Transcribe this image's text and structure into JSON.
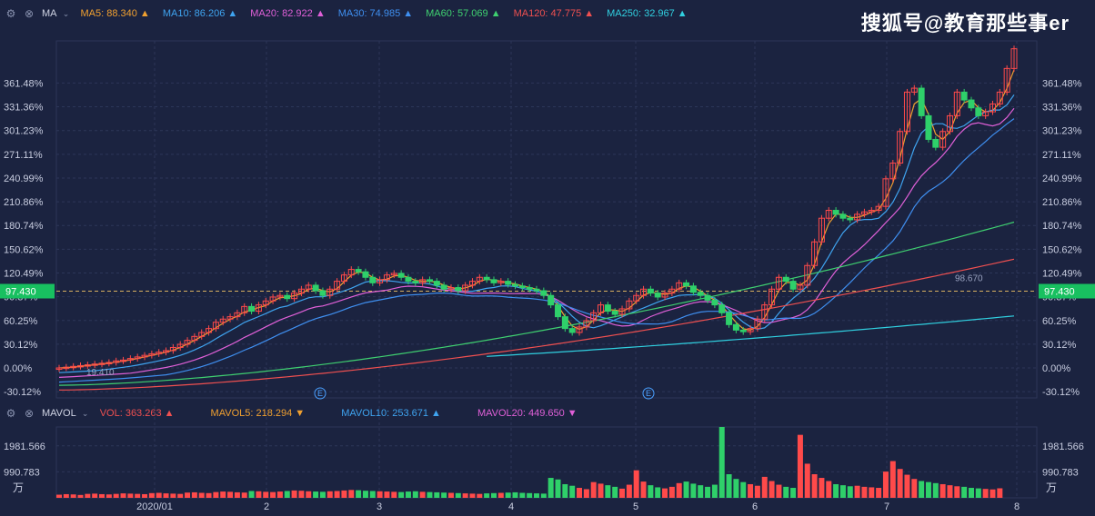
{
  "watermark": "搜狐号@教育那些事er",
  "price_indicator": {
    "name": "MA",
    "legends": [
      {
        "label": "MA5: 88.340",
        "color": "#f0a030"
      },
      {
        "label": "MA10: 86.206",
        "color": "#3fa4f0"
      },
      {
        "label": "MA20: 82.922",
        "color": "#e060d8"
      },
      {
        "label": "MA30: 74.985",
        "color": "#3f8ff0"
      },
      {
        "label": "MA60: 57.069",
        "color": "#3fd070"
      },
      {
        "label": "MA120: 47.775",
        "color": "#f05050"
      },
      {
        "label": "MA250: 32.967",
        "color": "#30d0e0"
      }
    ],
    "arrow": "▲"
  },
  "volume_indicator": {
    "name": "MAVOL",
    "legends": [
      {
        "label": "VOL: 363.263",
        "color": "#f05050",
        "arrow": "▲"
      },
      {
        "label": "MAVOL5: 218.294",
        "color": "#f0a030",
        "arrow": "▼"
      },
      {
        "label": "MAVOL10: 253.671",
        "color": "#3fa4f0",
        "arrow": "▲"
      },
      {
        "label": "MAVOL20: 449.650",
        "color": "#e060d8",
        "arrow": "▼"
      }
    ]
  },
  "colors": {
    "up": "#ff4a4a",
    "down": "#2fd06a",
    "grid": "#2c3658",
    "axis_text": "#c8cde0",
    "current": "#18c060"
  },
  "chart_data": [
    {
      "type": "candlestick",
      "title": "MA",
      "y_axis_unit": "percent",
      "ylim": [
        -38,
        415
      ],
      "y_ticks": [
        -30.12,
        0.0,
        30.12,
        60.25,
        90.37,
        120.49,
        150.62,
        180.74,
        210.86,
        240.99,
        271.11,
        301.23,
        331.36,
        361.48
      ],
      "y_tick_labels": [
        "-30.12%",
        "0.00%",
        "30.12%",
        "60.25%",
        "90.37%",
        "120.49%",
        "150.62%",
        "180.74%",
        "210.86%",
        "240.99%",
        "271.11%",
        "301.23%",
        "331.36%",
        "361.48%"
      ],
      "current_value": 97.43,
      "current_label": "97.430",
      "annotations": {
        "high_label": "98.670",
        "low_label": "19.410",
        "event_markers": [
          "E",
          "E"
        ]
      },
      "x_labels": [
        "2020/01",
        "2",
        "3",
        "4",
        "5",
        "6",
        "7",
        "8"
      ],
      "series": [
        {
          "name": "MA5",
          "color": "#f0a030"
        },
        {
          "name": "MA10",
          "color": "#3fa4f0"
        },
        {
          "name": "MA20",
          "color": "#e060d8"
        },
        {
          "name": "MA30",
          "color": "#3f8ff0"
        },
        {
          "name": "MA60",
          "color": "#3fd070"
        },
        {
          "name": "MA120",
          "color": "#f05050"
        },
        {
          "name": "MA250",
          "color": "#30d0e0"
        }
      ],
      "closes": [
        0,
        1,
        2,
        3,
        4,
        5,
        6,
        7,
        9,
        10,
        12,
        14,
        16,
        18,
        20,
        22,
        26,
        30,
        35,
        40,
        45,
        50,
        58,
        62,
        65,
        70,
        78,
        72,
        80,
        85,
        90,
        92,
        88,
        95,
        100,
        105,
        98,
        92,
        100,
        110,
        118,
        125,
        122,
        115,
        108,
        112,
        118,
        120,
        115,
        110,
        108,
        112,
        110,
        105,
        100,
        102,
        98,
        105,
        110,
        115,
        112,
        108,
        110,
        106,
        104,
        102,
        100,
        98,
        92,
        80,
        65,
        50,
        45,
        52,
        60,
        70,
        80,
        72,
        68,
        75,
        85,
        92,
        100,
        95,
        90,
        95,
        100,
        108,
        104,
        96,
        92,
        86,
        80,
        70,
        55,
        48,
        46,
        50,
        62,
        80,
        100,
        115,
        110,
        100,
        105,
        130,
        160,
        190,
        200,
        195,
        190,
        188,
        195,
        198,
        200,
        205,
        240,
        260,
        300,
        350,
        355,
        320,
        290,
        280,
        300,
        320,
        350,
        340,
        330,
        320,
        325,
        335,
        350,
        380,
        405
      ]
    },
    {
      "type": "bar",
      "title": "MAVOL",
      "unit": "万",
      "ylim": [
        0,
        2700
      ],
      "y_ticks": [
        990.783,
        1981.566
      ],
      "y_tick_labels": [
        "990.783",
        "1981.566"
      ],
      "volumes": [
        120,
        140,
        130,
        110,
        150,
        160,
        140,
        130,
        150,
        170,
        160,
        150,
        140,
        180,
        190,
        170,
        160,
        150,
        200,
        210,
        190,
        180,
        220,
        240,
        230,
        210,
        200,
        260,
        250,
        230,
        220,
        240,
        260,
        280,
        270,
        250,
        240,
        230,
        250,
        260,
        280,
        300,
        290,
        270,
        260,
        250,
        240,
        230,
        220,
        240,
        250,
        230,
        220,
        210,
        200,
        190,
        180,
        170,
        160,
        150,
        170,
        180,
        190,
        200,
        210,
        190,
        180,
        170,
        160,
        760,
        700,
        520,
        460,
        380,
        330,
        600,
        540,
        480,
        420,
        350,
        500,
        1050,
        620,
        480,
        400,
        360,
        420,
        560,
        620,
        540,
        480,
        420,
        500,
        2800,
        900,
        720,
        600,
        520,
        460,
        800,
        640,
        500,
        420,
        380,
        2400,
        1300,
        900,
        760,
        640,
        520,
        480,
        440,
        460,
        420,
        400,
        380,
        1000,
        1400,
        1100,
        880,
        720,
        640,
        600,
        560,
        520,
        480,
        440,
        420,
        380,
        360,
        340,
        320,
        363
      ]
    }
  ]
}
